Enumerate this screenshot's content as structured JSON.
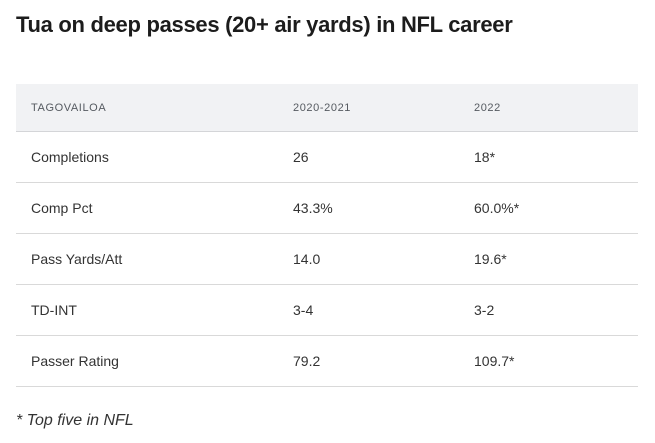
{
  "title": "Tua on deep passes (20+ air yards) in NFL career",
  "table": {
    "headers": [
      "TAGOVAILOA",
      "2020-2021",
      "2022"
    ],
    "rows": [
      [
        "Completions",
        "26",
        "18*"
      ],
      [
        "Comp Pct",
        "43.3%",
        "60.0%*"
      ],
      [
        "Pass Yards/Att",
        "14.0",
        "19.6*"
      ],
      [
        "TD-INT",
        "3-4",
        "3-2"
      ],
      [
        "Passer Rating",
        "79.2",
        "109.7*"
      ]
    ]
  },
  "footnote": "* Top five in NFL"
}
